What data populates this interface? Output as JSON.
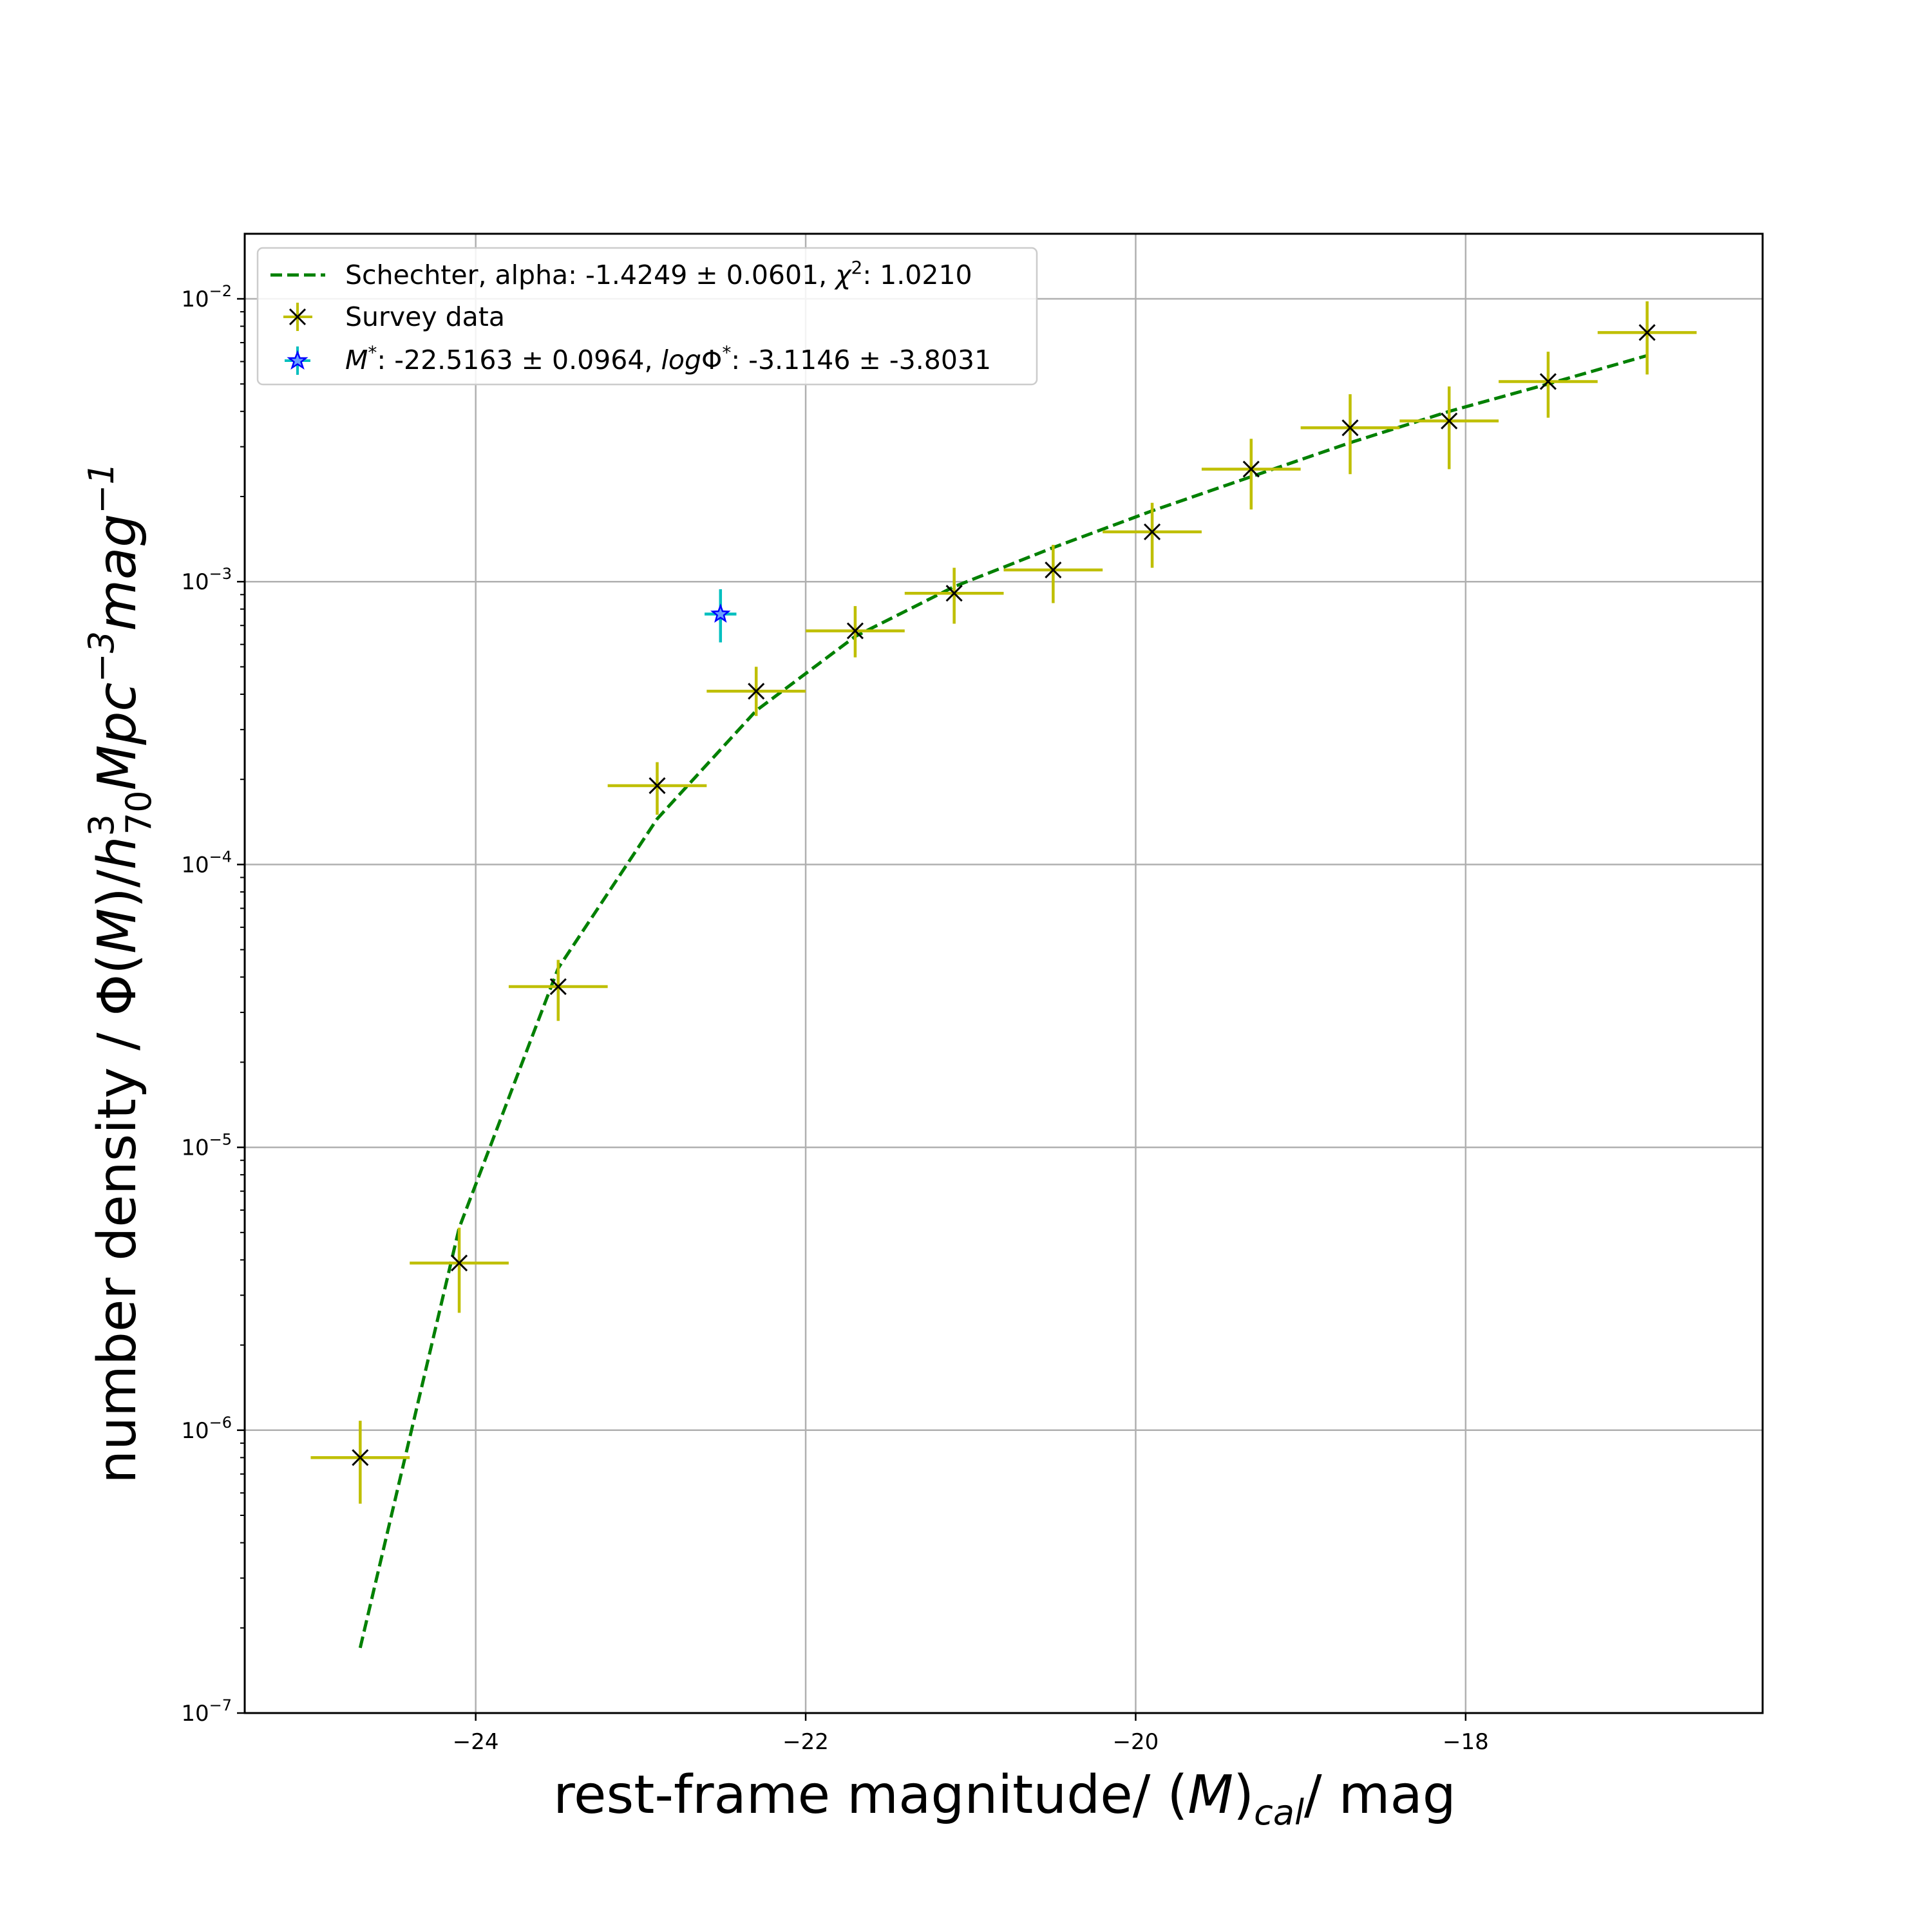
{
  "chart_data": {
    "type": "scatter",
    "xlabel": "rest-frame magnitude/ (M)cal/ mag",
    "xlabel_parts": {
      "main": "rest-frame magnitude/ (",
      "var": "M",
      "close": ")",
      "sub": "cal",
      "tail": "/ mag"
    },
    "ylabel": "number density / Φ(M)/h70^3 Mpc^-3 mag^-1",
    "ylabel_parts": {
      "main": "number density / Φ(",
      "var": "M",
      "mid": ")/",
      "h": "h",
      "sup3": "3",
      "sub70": "70",
      "mpc": "Mpc",
      "supm3": "−3",
      "mag": "mag",
      "supm1": "−1"
    },
    "xlim": [
      -25.4,
      -16.2
    ],
    "ylim_exp": [
      -7,
      -1.77
    ],
    "yscale": "log",
    "grid": true,
    "legend_position": "top-left",
    "x_ticks": [
      -24,
      -22,
      -20,
      -18
    ],
    "x_tick_labels": [
      "−24",
      "−22",
      "−20",
      "−18"
    ],
    "y_ticks_exp": [
      -7,
      -6,
      -5,
      -4,
      -3,
      -2
    ],
    "y_tick_labels": [
      {
        "base": "10",
        "exp": "−7"
      },
      {
        "base": "10",
        "exp": "−6"
      },
      {
        "base": "10",
        "exp": "−5"
      },
      {
        "base": "10",
        "exp": "−4"
      },
      {
        "base": "10",
        "exp": "−3"
      },
      {
        "base": "10",
        "exp": "−2"
      }
    ],
    "legend": {
      "fit_label": {
        "prefix": "Schechter, alpha: -1.4249 ± 0.0601, ",
        "chi": "χ",
        "chi_sup": "2",
        "suffix": ": 1.0210"
      },
      "data_label": "Survey data",
      "mstar_label": {
        "m": "M",
        "m_sup": "*",
        "m_value": ": -22.5163 ± 0.0964, ",
        "log": "log",
        "phi": "Φ",
        "phi_sup": "*",
        "phi_value": ": -3.1146 ± -3.8031"
      }
    },
    "colors": {
      "fit": "#008000",
      "data_err": "#bfbf00",
      "data_marker": "#000000",
      "mstar_err": "#00bfbf",
      "mstar_marker": "#0000ff",
      "grid": "#b0b0b0"
    },
    "series": [
      {
        "name": "Schechter, alpha: -1.4249 ± 0.0601, χ2: 1.0210",
        "type": "line",
        "style": "dashed",
        "x": [
          -24.7,
          -24.1,
          -23.5,
          -22.9,
          -22.3,
          -21.7,
          -21.1,
          -20.5,
          -19.9,
          -19.3,
          -18.7,
          -18.1,
          -17.5,
          -16.9
        ],
        "y": [
          1.7e-07,
          5.2e-06,
          4.3e-05,
          0.000145,
          0.00035,
          0.00064,
          0.00096,
          0.00132,
          0.00178,
          0.00235,
          0.0031,
          0.004,
          0.005,
          0.0063
        ]
      },
      {
        "name": "Survey data",
        "type": "errorbar",
        "x": [
          -24.7,
          -24.1,
          -23.5,
          -22.9,
          -22.3,
          -21.7,
          -21.1,
          -20.5,
          -19.9,
          -19.3,
          -18.7,
          -18.1,
          -17.5,
          -16.9
        ],
        "x_err": 0.3,
        "y": [
          8e-07,
          3.9e-06,
          3.7e-05,
          0.00019,
          0.00041,
          0.00067,
          0.00091,
          0.0011,
          0.0015,
          0.0025,
          0.0035,
          0.0037,
          0.0051,
          0.0076
        ],
        "y_low": [
          5.5e-07,
          2.6e-06,
          2.8e-05,
          0.00015,
          0.000335,
          0.00054,
          0.00071,
          0.00084,
          0.00112,
          0.0018,
          0.0024,
          0.0025,
          0.0038,
          0.0054
        ],
        "y_high": [
          1.08e-06,
          5.2e-06,
          4.6e-05,
          0.00023,
          0.0005,
          0.00082,
          0.00112,
          0.00135,
          0.0019,
          0.0032,
          0.0046,
          0.0049,
          0.0065,
          0.0098
        ]
      },
      {
        "name": "M*: -22.5163 ± 0.0964, logΦ*: -3.1146 ± -3.8031",
        "type": "errorbar",
        "x": [
          -22.5163
        ],
        "x_err": 0.0964,
        "y": [
          0.000768
        ],
        "y_low": [
          0.00061
        ],
        "y_high": [
          0.00094
        ]
      }
    ]
  }
}
